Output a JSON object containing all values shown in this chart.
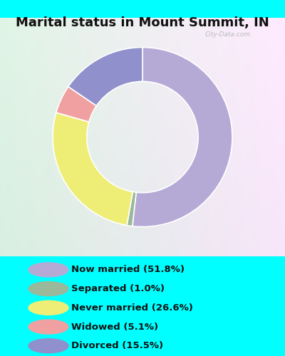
{
  "title": "Marital status in Mount Summit, IN",
  "title_fontsize": 13,
  "title_color": "#111111",
  "fig_bg": "#00FFFF",
  "chart_bg_color1": "#d4edda",
  "chart_bg_color2": "#f0eef8",
  "legend_bg": "#00FFFF",
  "slices": [
    {
      "label": "Now married (51.8%)",
      "value": 51.8,
      "color": "#b5aad6"
    },
    {
      "label": "Separated (1.0%)",
      "value": 1.0,
      "color": "#9ab89a"
    },
    {
      "label": "Never married (26.6%)",
      "value": 26.6,
      "color": "#eeee77"
    },
    {
      "label": "Widowed (5.1%)",
      "value": 5.1,
      "color": "#f0a0a0"
    },
    {
      "label": "Divorced (15.5%)",
      "value": 15.5,
      "color": "#9090cc"
    }
  ],
  "legend_colors": [
    "#b5aad6",
    "#9ab89a",
    "#eeee77",
    "#f0a0a0",
    "#9090cc"
  ],
  "legend_labels": [
    "Now married (51.8%)",
    "Separated (1.0%)",
    "Never married (26.6%)",
    "Widowed (5.1%)",
    "Divorced (15.5%)"
  ],
  "donut_width": 0.38,
  "figsize": [
    4.0,
    5.0
  ],
  "dpi": 100,
  "startangle": 90
}
